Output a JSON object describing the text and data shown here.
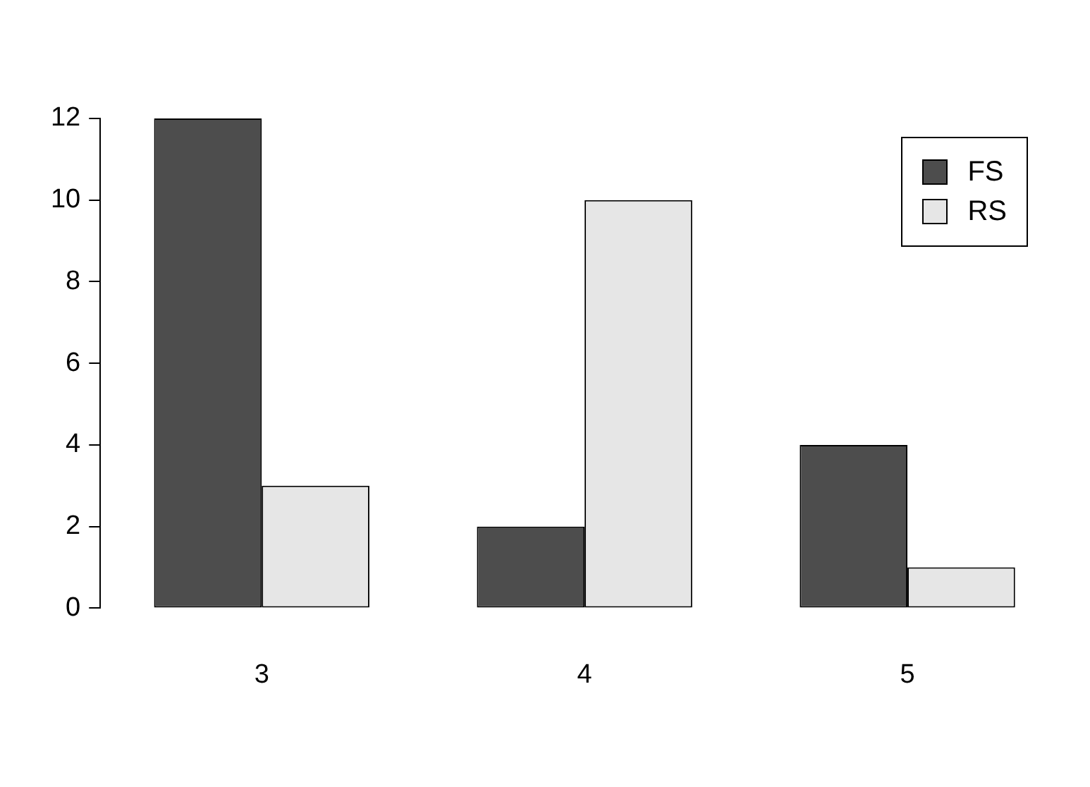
{
  "chart_data": {
    "type": "bar",
    "categories": [
      "3",
      "4",
      "5"
    ],
    "series": [
      {
        "name": "FS",
        "color": "#4d4d4d",
        "values": [
          12,
          2,
          4
        ]
      },
      {
        "name": "RS",
        "color": "#e6e6e6",
        "values": [
          3,
          10,
          1
        ]
      }
    ],
    "ylim": [
      0,
      12
    ],
    "yticks": [
      0,
      2,
      4,
      6,
      8,
      10,
      12
    ],
    "grid": false,
    "legend": "top right"
  }
}
